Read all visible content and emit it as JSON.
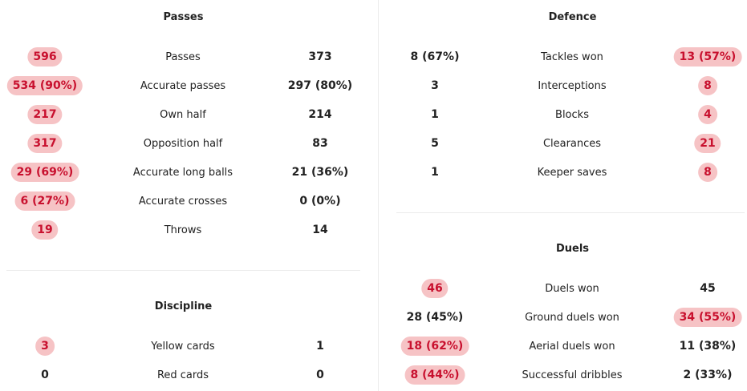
{
  "colors": {
    "highlight_bg": "#f6c3c5",
    "highlight_text": "#c8102e",
    "divider": "#ececec"
  },
  "passes": {
    "title": "Passes",
    "rows": [
      {
        "label": "Passes",
        "home": "596",
        "away": "373",
        "highlight": "home"
      },
      {
        "label": "Accurate passes",
        "home": "534 (90%)",
        "away": "297 (80%)",
        "highlight": "home"
      },
      {
        "label": "Own half",
        "home": "217",
        "away": "214",
        "highlight": "home"
      },
      {
        "label": "Opposition half",
        "home": "317",
        "away": "83",
        "highlight": "home"
      },
      {
        "label": "Accurate long balls",
        "home": "29 (69%)",
        "away": "21 (36%)",
        "highlight": "home"
      },
      {
        "label": "Accurate crosses",
        "home": "6 (27%)",
        "away": "0 (0%)",
        "highlight": "home"
      },
      {
        "label": "Throws",
        "home": "19",
        "away": "14",
        "highlight": "home"
      }
    ]
  },
  "discipline": {
    "title": "Discipline",
    "rows": [
      {
        "label": "Yellow cards",
        "home": "3",
        "away": "1",
        "highlight": "home"
      },
      {
        "label": "Red cards",
        "home": "0",
        "away": "0",
        "highlight": "none"
      }
    ]
  },
  "defence": {
    "title": "Defence",
    "rows": [
      {
        "label": "Tackles won",
        "home": "8 (67%)",
        "away": "13 (57%)",
        "highlight": "away"
      },
      {
        "label": "Interceptions",
        "home": "3",
        "away": "8",
        "highlight": "away"
      },
      {
        "label": "Blocks",
        "home": "1",
        "away": "4",
        "highlight": "away"
      },
      {
        "label": "Clearances",
        "home": "5",
        "away": "21",
        "highlight": "away"
      },
      {
        "label": "Keeper saves",
        "home": "1",
        "away": "8",
        "highlight": "away"
      }
    ]
  },
  "duels": {
    "title": "Duels",
    "rows": [
      {
        "label": "Duels won",
        "home": "46",
        "away": "45",
        "highlight": "home"
      },
      {
        "label": "Ground duels won",
        "home": "28 (45%)",
        "away": "34 (55%)",
        "highlight": "away"
      },
      {
        "label": "Aerial duels won",
        "home": "18 (62%)",
        "away": "11 (38%)",
        "highlight": "home"
      },
      {
        "label": "Successful dribbles",
        "home": "8 (44%)",
        "away": "2 (33%)",
        "highlight": "home"
      }
    ]
  }
}
